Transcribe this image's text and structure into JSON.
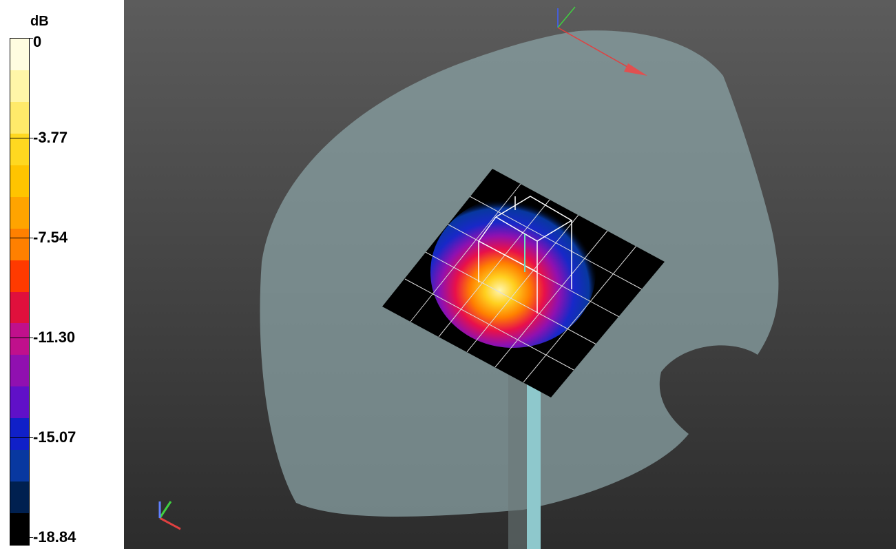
{
  "legend": {
    "unit": "dB",
    "labels": [
      "0",
      "-3.77",
      "-7.54",
      "-11.30",
      "-15.07",
      "-18.84"
    ]
  }
}
